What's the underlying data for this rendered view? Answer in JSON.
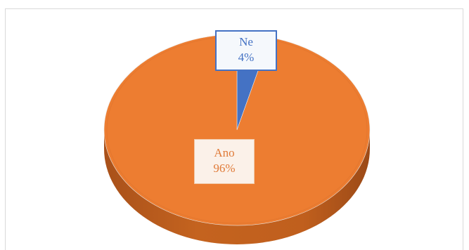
{
  "chart_data": {
    "type": "pie",
    "style": "3d",
    "categories": [
      "Ne",
      "Ano"
    ],
    "values": [
      4,
      96
    ],
    "labels": [
      {
        "name": "Ne",
        "percent": "4%"
      },
      {
        "name": "Ano",
        "percent": "96%"
      }
    ],
    "colors": [
      "#4472c4",
      "#ed7d31"
    ],
    "legend": "none",
    "title": ""
  }
}
